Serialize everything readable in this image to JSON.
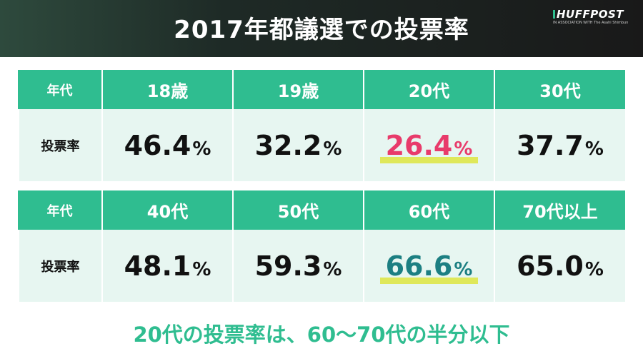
{
  "header": {
    "title": "2017年都議選での投票率",
    "logo_text": "HUFFPOST",
    "logo_sub": "IN ASSOCIATION WITH The Asahi Shimbun"
  },
  "table": {
    "age_label": "年代",
    "rate_label": "投票率",
    "percent_sign": "%"
  },
  "chart_data": {
    "type": "table",
    "title": "2017年都議選での投票率",
    "row_headers": [
      "年代",
      "投票率"
    ],
    "categories": [
      "18歳",
      "19歳",
      "20代",
      "30代",
      "40代",
      "50代",
      "60代",
      "70代以上"
    ],
    "values": [
      "46.4",
      "32.2",
      "26.4",
      "37.7",
      "48.1",
      "59.3",
      "66.6",
      "65.0"
    ],
    "unit": "%",
    "highlighted": {
      "20代": "#e83b6b",
      "60代": "#1c7f82"
    }
  },
  "footer": {
    "text_before": "20代の投票率は、60〜70代の",
    "text_emphasis": "半分以下"
  }
}
